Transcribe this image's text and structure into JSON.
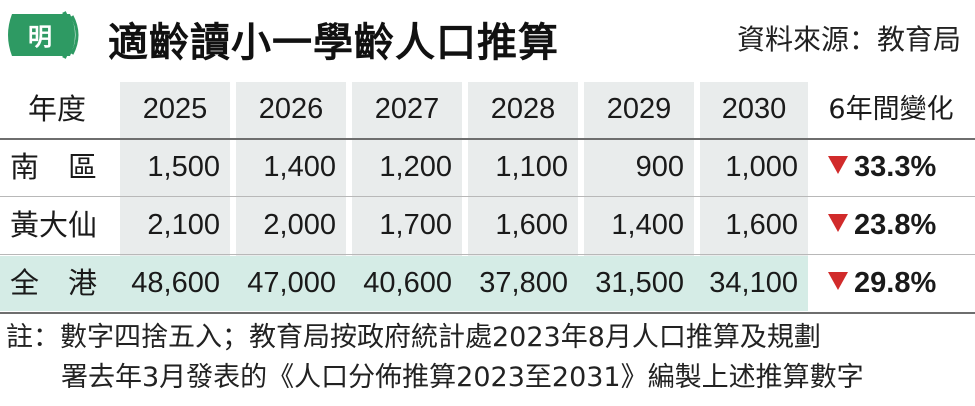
{
  "header": {
    "logo_text": "明",
    "title": "適齡讀小一學齡人口推算",
    "source": "資料來源：教育局"
  },
  "table": {
    "columns": [
      "年度",
      "2025",
      "2026",
      "2027",
      "2028",
      "2029",
      "2030",
      "6年間變化"
    ],
    "rows": [
      {
        "label": "南　區",
        "values": [
          "1,500",
          "1,400",
          "1,200",
          "1,100",
          "900",
          "1,000"
        ],
        "change": "33.3%"
      },
      {
        "label": "黃大仙",
        "values": [
          "2,100",
          "2,000",
          "1,700",
          "1,600",
          "1,400",
          "1,600"
        ],
        "change": "23.8%"
      },
      {
        "label": "全　港",
        "values": [
          "48,600",
          "47,000",
          "40,600",
          "37,800",
          "31,500",
          "34,100"
        ],
        "change": "29.8%"
      }
    ]
  },
  "notes": {
    "line1": "註：數字四捨五入；教育局按政府統計處2023年8月人口推算及規劃",
    "line2": "署去年3月發表的《人口分佈推算2023至2031》編製上述推算數字"
  },
  "colors": {
    "column_bg": "#e9ecec",
    "highlight_row_bg": "#d5ece6",
    "decrease_arrow": "#d12b2b",
    "logo_green": "#2e9a63"
  }
}
